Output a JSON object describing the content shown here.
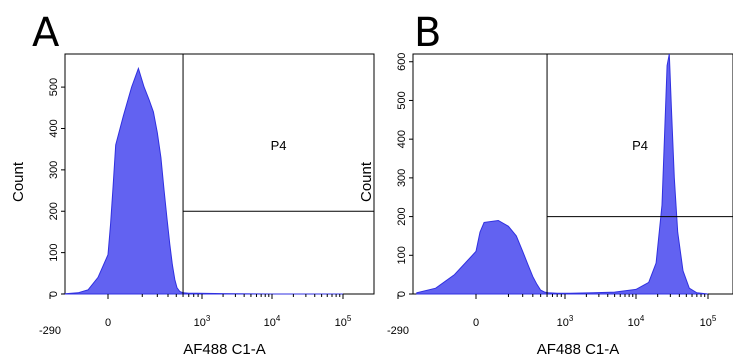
{
  "chart_data": [
    {
      "panel": "A",
      "type": "area",
      "xlabel": "AF488 C1-A",
      "ylabel": "Count",
      "x_scale": "biexponential",
      "x_ticks": [
        {
          "value": -290,
          "label": "-290"
        },
        {
          "value": 0,
          "label": "0"
        },
        {
          "value": 1000,
          "label": "10",
          "exp": "3"
        },
        {
          "value": 10000,
          "label": "10",
          "exp": "4"
        },
        {
          "value": 100000,
          "label": "10",
          "exp": "5"
        }
      ],
      "y_ticks": [
        0,
        100,
        200,
        300,
        400,
        500
      ],
      "ylim": [
        0,
        580
      ],
      "gate": {
        "name": "P4",
        "x_min": 600,
        "y_level": 200
      },
      "series": [
        {
          "color": "#4747ee",
          "x": [
            -230,
            -150,
            -100,
            -50,
            0,
            30,
            60,
            90,
            120,
            150,
            180,
            210,
            240,
            270,
            300,
            330,
            360,
            390,
            420,
            450,
            480,
            510,
            550,
            600,
            700,
            900,
            2000,
            10000,
            100000
          ],
          "y": [
            0,
            3,
            10,
            40,
            95,
            170,
            260,
            360,
            430,
            500,
            545,
            500,
            470,
            440,
            390,
            330,
            250,
            180,
            120,
            70,
            35,
            15,
            6,
            3,
            2,
            2,
            1,
            0,
            0
          ]
        }
      ]
    },
    {
      "panel": "B",
      "type": "area",
      "xlabel": "AF488 C1-A",
      "ylabel": "Count",
      "x_scale": "biexponential",
      "x_ticks": [
        {
          "value": -290,
          "label": "-290"
        },
        {
          "value": 0,
          "label": "0"
        },
        {
          "value": 1000,
          "label": "10",
          "exp": "3"
        },
        {
          "value": 10000,
          "label": "10",
          "exp": "4"
        },
        {
          "value": 100000,
          "label": "10",
          "exp": "5"
        }
      ],
      "y_ticks": [
        0,
        100,
        200,
        300,
        400,
        500,
        600
      ],
      "ylim": [
        0,
        620
      ],
      "gate": {
        "name": "P4",
        "x_min": 600,
        "y_level": 200
      },
      "series": [
        {
          "color": "#4747ee",
          "x": [
            -220,
            -150,
            -80,
            0,
            50,
            100,
            150,
            200,
            250,
            300,
            350,
            400,
            450,
            500,
            560,
            620,
            800,
            1200,
            2500,
            5000,
            10000,
            15000,
            19000,
            23000,
            25000,
            27000,
            29000,
            31000,
            34000,
            38000,
            45000,
            55000,
            70000,
            100000
          ],
          "y": [
            3,
            15,
            50,
            110,
            160,
            185,
            190,
            175,
            150,
            110,
            75,
            45,
            25,
            10,
            5,
            3,
            2,
            2,
            3,
            5,
            12,
            30,
            80,
            230,
            420,
            590,
            620,
            480,
            300,
            160,
            60,
            15,
            3,
            0
          ]
        }
      ]
    }
  ]
}
